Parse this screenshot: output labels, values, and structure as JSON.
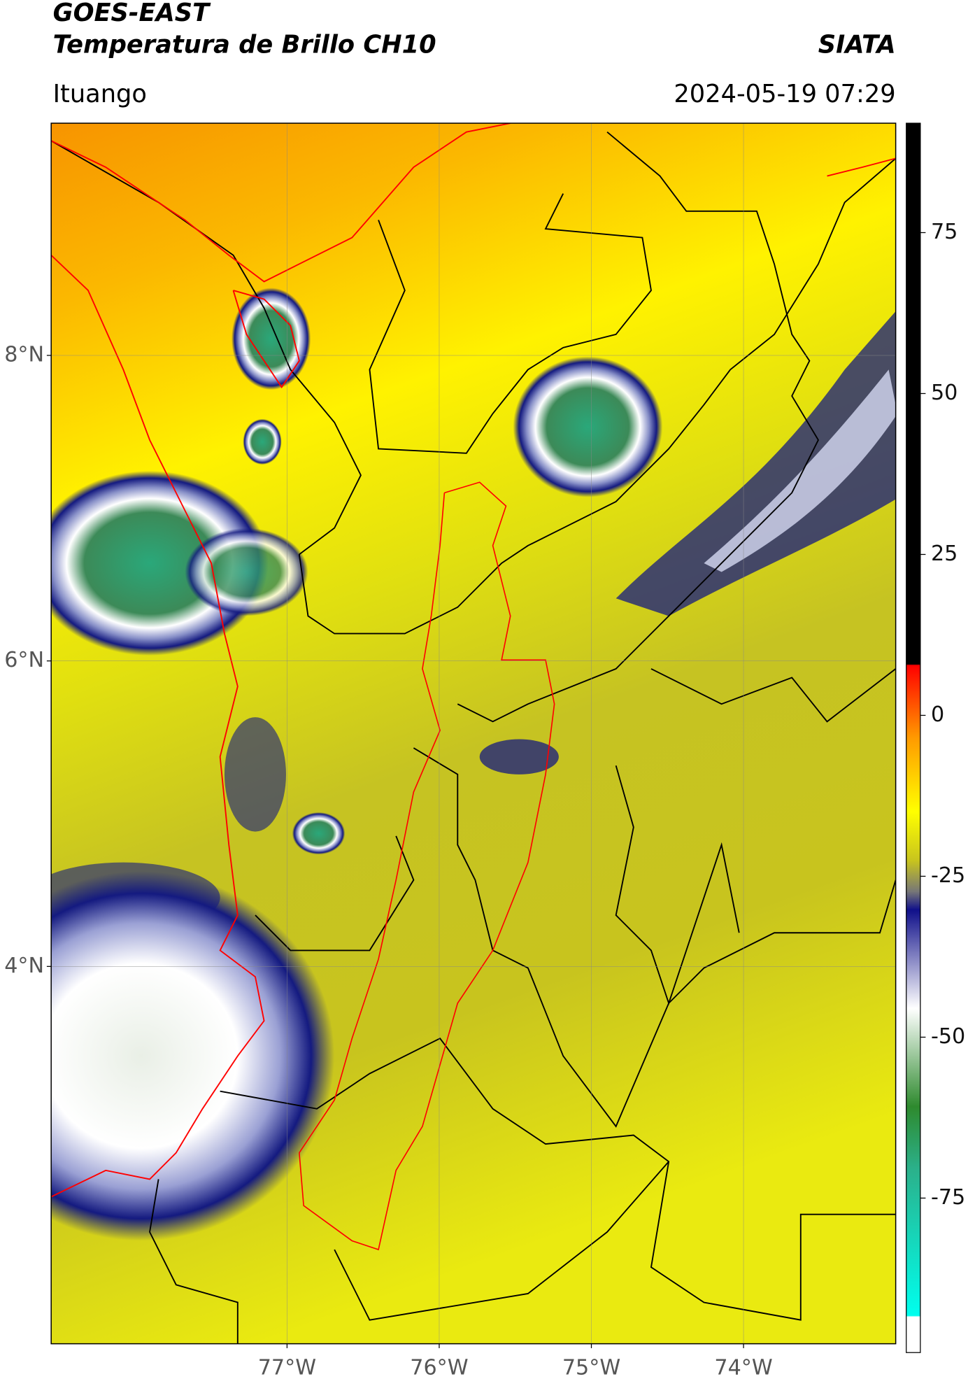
{
  "header": {
    "title": "GOES-EAST",
    "subtitle": "Temperatura de Brillo CH10",
    "brand": "SIATA",
    "location": "Ituango",
    "datetime": "2024-05-19 07:29"
  },
  "map": {
    "latlim": [
      1.53,
      9.52
    ],
    "lonlim": [
      -78.55,
      -73.0
    ],
    "lat_ticks": [
      {
        "value": 8,
        "label": "8°N"
      },
      {
        "value": 6,
        "label": "6°N"
      },
      {
        "value": 4,
        "label": "4°N"
      }
    ],
    "lon_ticks": [
      {
        "value": -77,
        "label": "77°W"
      },
      {
        "value": -76,
        "label": "76°W"
      },
      {
        "value": -75,
        "label": "75°W"
      },
      {
        "value": -74,
        "label": "74°W"
      }
    ],
    "grid": true
  },
  "colorbar": {
    "lim": [
      -99,
      92
    ],
    "ticks": [
      75,
      50,
      25,
      0,
      -25,
      -50,
      -75
    ]
  }
}
